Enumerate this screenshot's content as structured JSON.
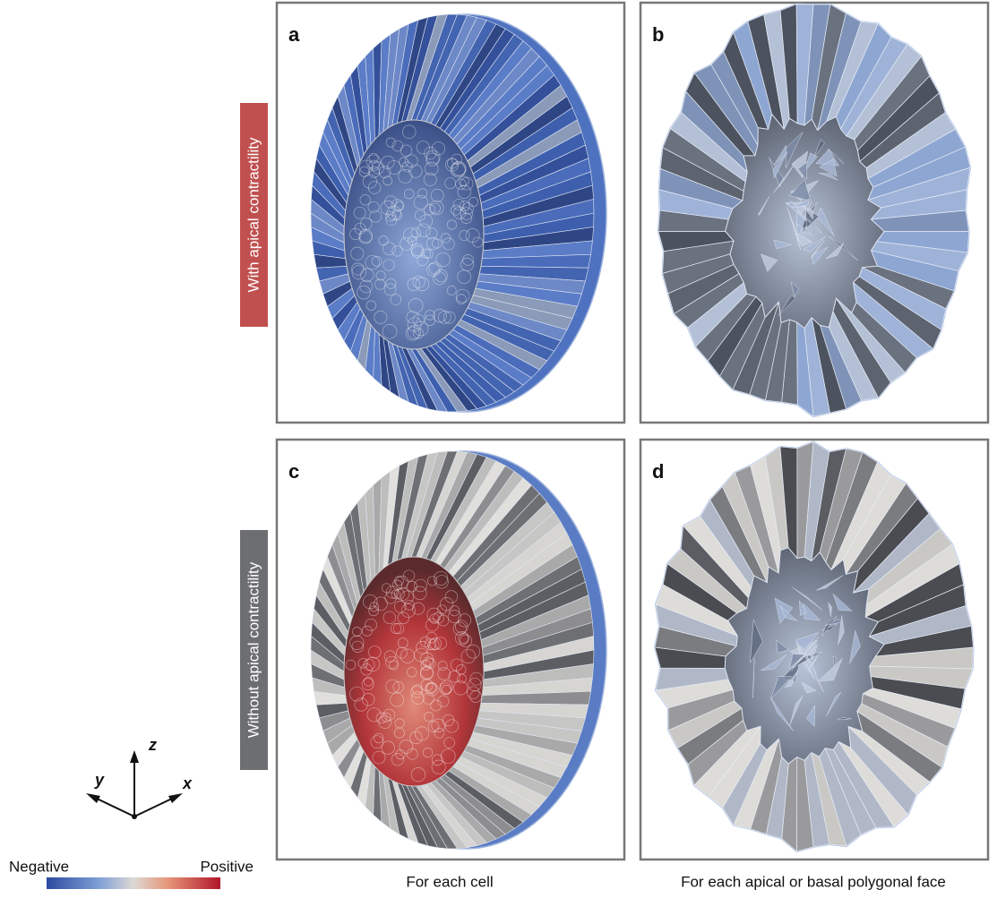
{
  "panels": [
    {
      "label": "a"
    },
    {
      "label": "b"
    },
    {
      "label": "c"
    },
    {
      "label": "d"
    }
  ],
  "row_labels": [
    "With apical contractility",
    "Without apical contractility"
  ],
  "axes": {
    "z": "z",
    "y": "y",
    "x": "x"
  },
  "colorbar": {
    "min_label": "Negative",
    "max_label": "Positive"
  },
  "column_captions": [
    "For each cell",
    "For each apical or basal polygonal face"
  ]
}
